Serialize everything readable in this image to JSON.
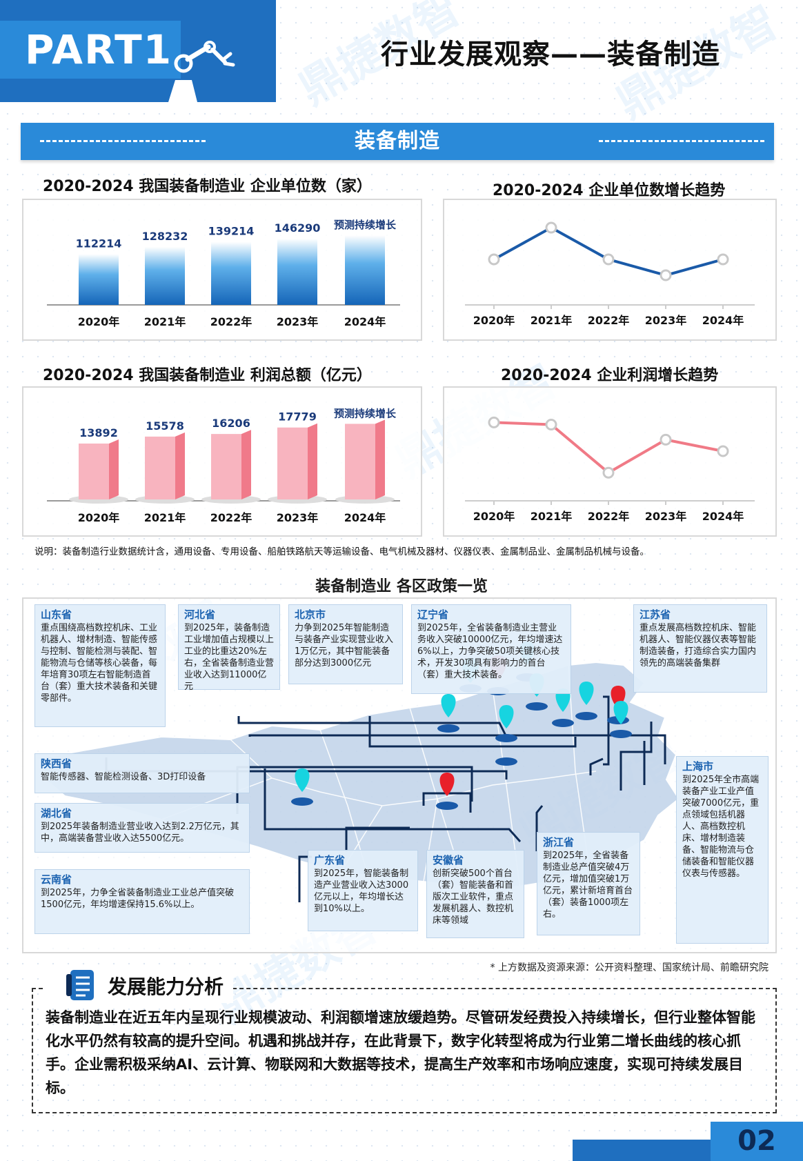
{
  "header": {
    "part_label": "PART1",
    "title": "行业发展观察——装备制造"
  },
  "banner": {
    "title": "装备制造"
  },
  "charts": {
    "enterprise_bar": {
      "title": "2020-2024 我国装备制造业 企业单位数（家）",
      "categories": [
        "2020年",
        "2021年",
        "2022年",
        "2023年",
        "2024年"
      ],
      "values": [
        112214,
        128232,
        139214,
        146290,
        null
      ],
      "labels": [
        "112214",
        "128232",
        "139214",
        "146290",
        "预测持续增长"
      ]
    },
    "enterprise_trend": {
      "title": "2020-2024 企业单位数增长趋势",
      "categories": [
        "2020年",
        "2021年",
        "2022年",
        "2023年",
        "2024年"
      ]
    },
    "profit_bar": {
      "title": "2020-2024 我国装备制造业 利润总额（亿元）",
      "categories": [
        "2020年",
        "2021年",
        "2022年",
        "2023年",
        "2024年"
      ],
      "values": [
        13892,
        15578,
        16206,
        17779,
        null
      ],
      "labels": [
        "13892",
        "15578",
        "16206",
        "17779",
        "预测持续增长"
      ]
    },
    "profit_trend": {
      "title": "2020-2024 企业利润增长趋势",
      "categories": [
        "2020年",
        "2021年",
        "2022年",
        "2023年",
        "2024年"
      ]
    }
  },
  "chart_data": [
    {
      "type": "bar",
      "title": "2020-2024 我国装备制造业 企业单位数（家）",
      "categories": [
        "2020年",
        "2021年",
        "2022年",
        "2023年",
        "2024年"
      ],
      "values": [
        112214,
        128232,
        139214,
        146290,
        null
      ]
    },
    {
      "type": "line",
      "title": "2020-2024 企业单位数增长趋势",
      "categories": [
        "2020年",
        "2021年",
        "2022年",
        "2023年",
        "2024年"
      ],
      "values": [
        0.5,
        1.0,
        0.5,
        0.25,
        0.5
      ]
    },
    {
      "type": "bar",
      "title": "2020-2024 我国装备制造业 利润总额（亿元）",
      "categories": [
        "2020年",
        "2021年",
        "2022年",
        "2023年",
        "2024年"
      ],
      "values": [
        13892,
        15578,
        16206,
        17779,
        null
      ]
    },
    {
      "type": "line",
      "title": "2020-2024 企业利润增长趋势",
      "categories": [
        "2020年",
        "2021年",
        "2022年",
        "2023年",
        "2024年"
      ],
      "values": [
        0.9,
        0.87,
        0.2,
        0.66,
        0.5
      ]
    }
  ],
  "note": "说明：装备制造行业数据统计含，通用设备、专用设备、船舶铁路航天等运输设备、电气机械及器材、仪器仪表、金属制品业、金属制品机械与设备。",
  "map": {
    "title": "装备制造业 各区政策一览",
    "provinces": [
      {
        "name": "山东省",
        "text": "重点围绕高档数控机床、工业机器人、增材制造、智能传感与控制、智能检测与装配、智能物流与仓储等核心装备，每年培育30项左右智能制造首台（套）重大技术装备和关键零部件。"
      },
      {
        "name": "河北省",
        "text": "到2025年，装备制造工业增加值占规模以上工业的比重达20%左右，全省装备制造业营业收入达到11000亿元"
      },
      {
        "name": "北京市",
        "text": "力争到2025年智能制造与装备产业实现营业收入1万亿元，其中智能装备部分达到3000亿元"
      },
      {
        "name": "辽宁省",
        "text": "到2025年，全省装备制造业主营业务收入突破10000亿元，年均增速达6%以上，力争突破50项关键核心技术，开发30项具有影响力的首台（套）重大技术装备。"
      },
      {
        "name": "江苏省",
        "text": "重点发展高档数控机床、智能机器人、智能仪器仪表等智能制造装备，打造综合实力国内领先的高端装备集群"
      },
      {
        "name": "陕西省",
        "text": "智能传感器、智能检测设备、3D打印设备"
      },
      {
        "name": "湖北省",
        "text": "到2025年装备制造业营业收入达到2.2万亿元，其中，高端装备营业收入达5500亿元。"
      },
      {
        "name": "云南省",
        "text": "到2025年，力争全省装备制造业工业总产值突破1500亿元，年均增速保持15.6%以上。"
      },
      {
        "name": "广东省",
        "text": "到2025年，智能装备制造产业营业收入达3000亿元以上，年均增长达到10%以上。"
      },
      {
        "name": "安徽省",
        "text": "创新突破500个首台（套）智能装备和首版次工业软件，重点发展机器人、数控机床等领域"
      },
      {
        "name": "浙江省",
        "text": "到2025年，全省装备制造业总产值突破4万亿元，增加值突破1万亿元，累计新培育首台（套）装备1000项左右。"
      },
      {
        "name": "上海市",
        "text": "到2025年全市高端装备产业工业产值突破7000亿元，重点领域包括机器人、高档数控机床、增材制造装备、智能物流与仓储装备和智能仪器仪表与传感器。"
      }
    ]
  },
  "source": "* 上方数据及资源来源：公开资料整理、国家统计局、前瞻研究院",
  "analysis": {
    "heading": "发展能力分析",
    "text": "装备制造业在近五年内呈现行业规模波动、利润额增速放缓趋势。尽管研发经费投入持续增长，但行业整体智能化水平仍然有较高的提升空间。机遇和挑战并存，在此背景下，数字化转型将成为行业第二增长曲线的核心抓手。企业需积极采纳AI、云计算、物联网和大数据等技术，提高生产效率和市场响应速度，实现可持续发展目标。"
  },
  "footer": {
    "page": "02"
  },
  "watermark": "鼎捷数智",
  "colors": {
    "primary": "#1f6fbf",
    "accent": "#2a8ad9",
    "pink": "#f48a9a",
    "line_blue": "#1a5aa8",
    "line_pink": "#f07a86"
  }
}
